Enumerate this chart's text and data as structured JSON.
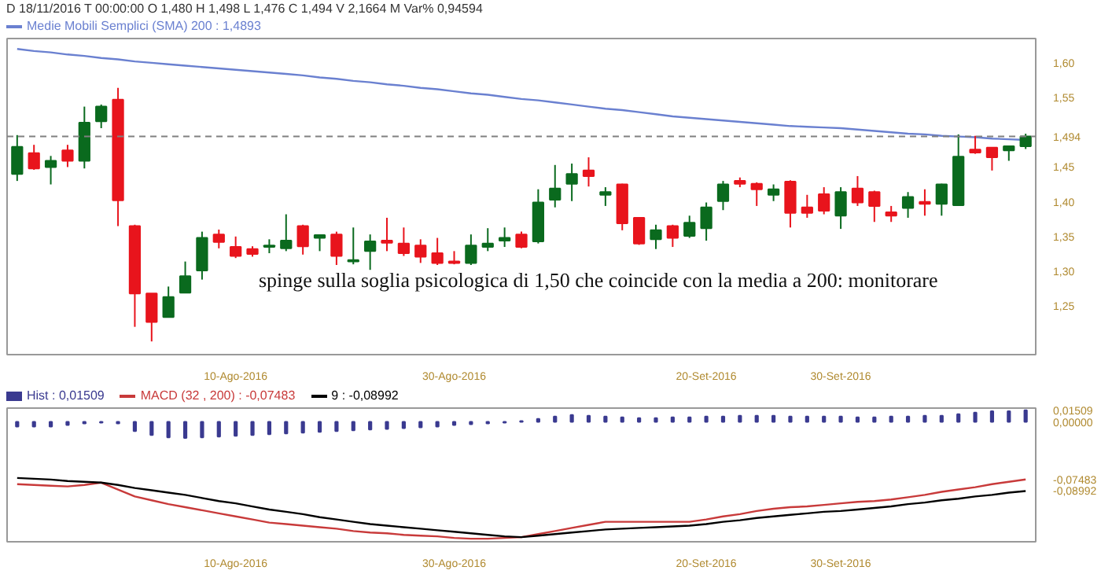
{
  "chart_data": [
    {
      "type": "candlestick",
      "subtitle": "D 18/11/2016  T 00:00:00  O 1,480  H 1,498  L 1,476  C 1,494  V 2,1664 M  Var% 0,94594",
      "categories": [
        null,
        null,
        null,
        null,
        null,
        null,
        null,
        null,
        null,
        null,
        null,
        null,
        null,
        "10-Ago-2016",
        null,
        null,
        null,
        null,
        null,
        null,
        null,
        null,
        null,
        null,
        null,
        null,
        "30-Ago-2016",
        null,
        null,
        null,
        null,
        null,
        null,
        null,
        null,
        null,
        null,
        null,
        null,
        null,
        null,
        "20-Set-2016",
        null,
        null,
        null,
        null,
        null,
        null,
        null,
        "30-Set-2016",
        null,
        null,
        null,
        null,
        null,
        null,
        null,
        null,
        null,
        null,
        null
      ],
      "ohlc": [
        [
          1.44,
          1.496,
          1.43,
          1.479
        ],
        [
          1.47,
          1.482,
          1.446,
          1.448
        ],
        [
          1.45,
          1.466,
          1.425,
          1.459
        ],
        [
          1.474,
          1.482,
          1.45,
          1.459
        ],
        [
          1.459,
          1.537,
          1.448,
          1.514
        ],
        [
          1.516,
          1.54,
          1.506,
          1.537
        ],
        [
          1.547,
          1.564,
          1.365,
          1.402
        ],
        [
          1.365,
          1.367,
          1.22,
          1.268
        ],
        [
          1.268,
          1.268,
          1.199,
          1.227
        ],
        [
          1.234,
          1.278,
          1.234,
          1.263
        ],
        [
          1.269,
          1.314,
          1.269,
          1.293
        ],
        [
          1.301,
          1.357,
          1.288,
          1.348
        ],
        [
          1.353,
          1.36,
          1.333,
          1.342
        ],
        [
          1.335,
          1.35,
          1.319,
          1.322
        ],
        [
          1.332,
          1.336,
          1.321,
          1.325
        ],
        [
          1.335,
          1.346,
          1.326,
          1.337
        ],
        [
          1.333,
          1.382,
          1.329,
          1.344
        ],
        [
          1.365,
          1.367,
          1.324,
          1.336
        ],
        [
          1.348,
          1.353,
          1.329,
          1.352
        ],
        [
          1.353,
          1.357,
          1.309,
          1.322
        ],
        [
          1.314,
          1.363,
          1.31,
          1.316
        ],
        [
          1.329,
          1.353,
          1.302,
          1.343
        ],
        [
          1.344,
          1.377,
          1.329,
          1.341
        ],
        [
          1.34,
          1.363,
          1.322,
          1.326
        ],
        [
          1.337,
          1.346,
          1.312,
          1.321
        ],
        [
          1.326,
          1.348,
          1.309,
          1.312
        ],
        [
          1.314,
          1.329,
          1.31,
          1.312
        ],
        [
          1.312,
          1.353,
          1.309,
          1.337
        ],
        [
          1.335,
          1.362,
          1.329,
          1.34
        ],
        [
          1.344,
          1.363,
          1.335,
          1.348
        ],
        [
          1.353,
          1.357,
          1.333,
          1.335
        ],
        [
          1.343,
          1.418,
          1.34,
          1.399
        ],
        [
          1.403,
          1.453,
          1.392,
          1.419
        ],
        [
          1.426,
          1.455,
          1.401,
          1.44
        ],
        [
          1.445,
          1.464,
          1.422,
          1.437
        ],
        [
          1.41,
          1.421,
          1.394,
          1.414
        ],
        [
          1.425,
          1.426,
          1.359,
          1.369
        ],
        [
          1.377,
          1.377,
          1.338,
          1.34
        ],
        [
          1.346,
          1.367,
          1.332,
          1.359
        ],
        [
          1.365,
          1.367,
          1.335,
          1.348
        ],
        [
          1.351,
          1.38,
          1.348,
          1.37
        ],
        [
          1.362,
          1.399,
          1.344,
          1.392
        ],
        [
          1.401,
          1.43,
          1.388,
          1.425
        ],
        [
          1.43,
          1.435,
          1.421,
          1.426
        ],
        [
          1.426,
          1.428,
          1.394,
          1.418
        ],
        [
          1.41,
          1.425,
          1.401,
          1.418
        ],
        [
          1.429,
          1.431,
          1.363,
          1.384
        ],
        [
          1.392,
          1.41,
          1.377,
          1.384
        ],
        [
          1.411,
          1.421,
          1.382,
          1.387
        ],
        [
          1.38,
          1.421,
          1.361,
          1.414
        ],
        [
          1.419,
          1.437,
          1.394,
          1.399
        ],
        [
          1.414,
          1.416,
          1.371,
          1.394
        ],
        [
          1.385,
          1.394,
          1.371,
          1.38
        ],
        [
          1.391,
          1.414,
          1.377,
          1.407
        ],
        [
          1.4,
          1.418,
          1.38,
          1.397
        ],
        [
          1.397,
          1.426,
          1.38,
          1.425
        ],
        [
          1.395,
          1.497,
          1.395,
          1.465
        ],
        [
          1.475,
          1.495,
          1.469,
          1.471
        ],
        [
          1.478,
          1.478,
          1.445,
          1.464
        ],
        [
          1.474,
          1.48,
          1.459,
          1.48
        ],
        [
          1.48,
          1.498,
          1.476,
          1.494
        ]
      ],
      "series": [
        {
          "type": "line",
          "name": "Medie Mobili Semplici (SMA)  200 : 1,4893",
          "color": "#6a80d0",
          "values": [
            1.62,
            1.617,
            1.615,
            1.612,
            1.61,
            1.607,
            1.605,
            1.602,
            1.6,
            1.598,
            1.596,
            1.594,
            1.592,
            1.59,
            1.588,
            1.586,
            1.584,
            1.582,
            1.579,
            1.577,
            1.574,
            1.572,
            1.569,
            1.567,
            1.564,
            1.562,
            1.559,
            1.556,
            1.554,
            1.551,
            1.548,
            1.546,
            1.543,
            1.54,
            1.537,
            1.534,
            1.532,
            1.529,
            1.526,
            1.523,
            1.521,
            1.519,
            1.517,
            1.515,
            1.513,
            1.511,
            1.509,
            1.508,
            1.507,
            1.506,
            1.504,
            1.502,
            1.5,
            1.498,
            1.497,
            1.495,
            1.494,
            1.493,
            1.491,
            1.49,
            1.489
          ]
        }
      ],
      "legend": "top left",
      "ylim": [
        1.18,
        1.635
      ],
      "yticks": [
        {
          "value": 1.25,
          "label": "1,25"
        },
        {
          "value": 1.3,
          "label": "1,30"
        },
        {
          "value": 1.35,
          "label": "1,35"
        },
        {
          "value": 1.4,
          "label": "1,40"
        },
        {
          "value": 1.45,
          "label": "1,45"
        },
        {
          "value": 1.55,
          "label": "1,55"
        },
        {
          "value": 1.6,
          "label": "1,60"
        }
      ],
      "ref_lines": [
        {
          "axis": "y",
          "value": 1.494,
          "label": "1,494",
          "color": "#808080",
          "line_style": "dashed"
        }
      ],
      "annotations": [
        "spinge sulla soglia psicologica di 1,50 che coincide con la media a 200: monitorare"
      ]
    },
    {
      "type": "line",
      "legend": "top left",
      "categories": [
        null,
        null,
        null,
        null,
        null,
        null,
        null,
        null,
        null,
        null,
        null,
        null,
        null,
        "10-Ago-2016",
        null,
        null,
        null,
        null,
        null,
        null,
        null,
        null,
        null,
        null,
        null,
        null,
        "30-Ago-2016",
        null,
        null,
        null,
        null,
        null,
        null,
        null,
        null,
        null,
        null,
        null,
        null,
        null,
        null,
        "20-Set-2016",
        null,
        null,
        null,
        null,
        null,
        null,
        null,
        "30-Set-2016",
        null,
        null,
        null,
        null,
        null,
        null,
        null,
        null,
        null,
        null,
        null
      ],
      "series": [
        {
          "type": "bar",
          "name": "Hist : 0,01509",
          "color": "#3a3a90",
          "values": [
            -0.006,
            -0.006,
            -0.006,
            -0.004,
            -0.002,
            -0.001,
            -0.002,
            -0.012,
            -0.017,
            -0.02,
            -0.021,
            -0.02,
            -0.019,
            -0.018,
            -0.017,
            -0.016,
            -0.015,
            -0.014,
            -0.013,
            -0.012,
            -0.011,
            -0.01,
            -0.009,
            -0.008,
            -0.007,
            -0.006,
            -0.004,
            -0.003,
            -0.002,
            -0.001,
            0.001,
            0.004,
            0.007,
            0.009,
            0.008,
            0.007,
            0.006,
            0.005,
            0.005,
            0.006,
            0.006,
            0.007,
            0.007,
            0.008,
            0.008,
            0.008,
            0.007,
            0.007,
            0.007,
            0.007,
            0.006,
            0.006,
            0.007,
            0.007,
            0.008,
            0.008,
            0.01,
            0.012,
            0.014,
            0.014,
            0.01509
          ]
        },
        {
          "type": "line",
          "name": "MACD (32 , 200) : -0,07483",
          "color": "#c83a3a",
          "values": [
            -0.081,
            -0.082,
            -0.083,
            -0.084,
            -0.082,
            -0.079,
            -0.088,
            -0.097,
            -0.102,
            -0.107,
            -0.111,
            -0.115,
            -0.119,
            -0.123,
            -0.127,
            -0.131,
            -0.133,
            -0.135,
            -0.137,
            -0.139,
            -0.142,
            -0.144,
            -0.145,
            -0.147,
            -0.148,
            -0.149,
            -0.151,
            -0.152,
            -0.152,
            -0.151,
            -0.15,
            -0.146,
            -0.142,
            -0.138,
            -0.134,
            -0.13,
            -0.13,
            -0.13,
            -0.13,
            -0.13,
            -0.13,
            -0.127,
            -0.123,
            -0.12,
            -0.116,
            -0.113,
            -0.111,
            -0.11,
            -0.108,
            -0.106,
            -0.104,
            -0.103,
            -0.101,
            -0.098,
            -0.095,
            -0.091,
            -0.088,
            -0.085,
            -0.081,
            -0.078,
            -0.07483
          ]
        },
        {
          "type": "line",
          "name": "9 : -0,08992",
          "color": "#000000",
          "values": [
            -0.073,
            -0.074,
            -0.075,
            -0.077,
            -0.078,
            -0.079,
            -0.082,
            -0.086,
            -0.089,
            -0.092,
            -0.095,
            -0.099,
            -0.103,
            -0.106,
            -0.11,
            -0.114,
            -0.117,
            -0.12,
            -0.124,
            -0.127,
            -0.13,
            -0.133,
            -0.135,
            -0.137,
            -0.139,
            -0.141,
            -0.143,
            -0.145,
            -0.147,
            -0.149,
            -0.15,
            -0.148,
            -0.146,
            -0.144,
            -0.142,
            -0.14,
            -0.139,
            -0.138,
            -0.137,
            -0.136,
            -0.135,
            -0.133,
            -0.13,
            -0.128,
            -0.125,
            -0.123,
            -0.121,
            -0.119,
            -0.117,
            -0.116,
            -0.114,
            -0.112,
            -0.11,
            -0.107,
            -0.105,
            -0.102,
            -0.1,
            -0.097,
            -0.095,
            -0.092,
            -0.08992
          ]
        }
      ],
      "ylim": [
        -0.156,
        0.018
      ],
      "yticks": [
        {
          "value": 0.01509,
          "label": "0,01509"
        },
        {
          "value": 0.0,
          "label": "0,00000"
        },
        {
          "value": -0.07483,
          "label": "-0,07483"
        },
        {
          "value": -0.08992,
          "label": "-0,08992"
        }
      ]
    }
  ]
}
